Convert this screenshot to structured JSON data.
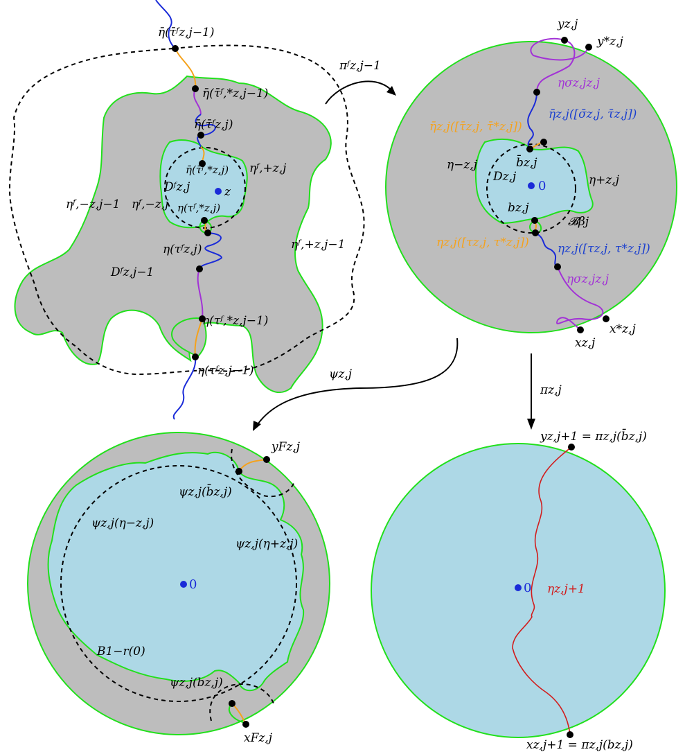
{
  "colors": {
    "gray": "#bdbdbd",
    "lightblue": "#add8e6",
    "green": "#22e01c",
    "blue": "#1a2bd8",
    "orange": "#f5a21c",
    "purple": "#a232d6",
    "red": "#d21c1c"
  },
  "panel_top_left": {
    "labels": {
      "eta_bar_tau_jm1": "η̄(τ̄ᶠz,j−1)",
      "eta_bar_tau_star_jm1": "η̄(τ̄ᶠ,*z,j−1)",
      "eta_bar_tau_j": "η̄(τ̄ᶠz,j)",
      "eta_bar_tau_star_j": "η̄(τ̄ᶠ,*z,j)",
      "eta_f_plus_j": "ηᶠ,+z,j",
      "eta_f_minus_j": "ηᶠ,−z,j",
      "D_f_j": "Dᶠz,j",
      "z": "z",
      "eta_tau_star_j": "η(τᶠ,*z,j)",
      "eta_tau_j": "η(τᶠz,j)",
      "eta_f_minus_jm1": "ηᶠ,−z,j−1",
      "eta_f_plus_jm1": "ηᶠ,+z,j−1",
      "D_f_jm1": "Dᶠz,j−1",
      "eta_tau_star_jm1": "η(τᶠ,*z,j−1)",
      "eta_tau_jm1": "η(τᶠz,j−1)"
    }
  },
  "panel_top_right": {
    "labels": {
      "y": "yz,j",
      "y_star": "y*z,j",
      "eta_sigma_top": "ησz,jz,j",
      "eta_bar_seg": "η̄z,j([σ̄z,j, τ̄z,j])",
      "eta_bar_orange": "η̄z,j([τ̄z,j, τ̄*z,j])",
      "eta_minus": "η−z,j",
      "b_bar": "b̄z,j",
      "D": "Dz,j",
      "zero": "0",
      "eta_plus": "η+z,j",
      "b": "bz,j",
      "B_beta": "𝓑βj",
      "eta_orange": "ηz,j([τz,j, τ*z,j])",
      "eta_blue": "ηz,j([τz,j, τ*z,j])",
      "eta_sigma_bottom": "ησz,jz,j",
      "x_star": "x*z,j",
      "x": "xz,j"
    }
  },
  "arrows": {
    "pi_f": "πᶠz,j−1",
    "psi": "ψz,j",
    "pi": "πz,j"
  },
  "panel_bottom_left": {
    "labels": {
      "y_F": "yFz,j",
      "psi_b_bar": "ψz,j(b̄z,j)",
      "psi_eta_minus": "ψz,j(η−z,j)",
      "psi_eta_plus": "ψz,j(η+z,j)",
      "zero": "0",
      "B_ball": "B1−r(0)",
      "psi_b": "ψz,j(bz,j)",
      "x_F": "xFz,j"
    }
  },
  "panel_bottom_right": {
    "labels": {
      "y_top": "yz,j+1 = πz,j(b̄z,j)",
      "eta_next": "ηz,j+1",
      "zero": "0",
      "x_bottom": "xz,j+1 = πz,j(bz,j)"
    }
  }
}
